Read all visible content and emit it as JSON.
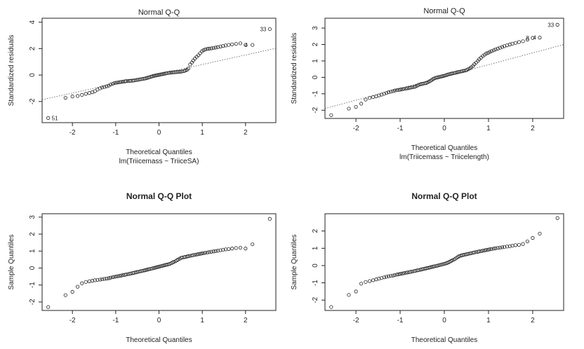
{
  "chart_data": [
    {
      "type": "scatter",
      "title": "Normal Q-Q",
      "subtitle": "lm(Triicemass ~ TriiceSA)",
      "xlabel": "Theoretical Quantiles",
      "ylabel": "Standardized residuals",
      "xlim": [
        -2.7,
        2.7
      ],
      "ylim": [
        -3.6,
        4.3
      ],
      "xticks": [
        -2,
        -1,
        0,
        1,
        2
      ],
      "yticks": [
        -2,
        0,
        2,
        4
      ],
      "reference_line": {
        "slope": 0.72,
        "intercept": 0.08,
        "style": "dotted"
      },
      "point_labels": [
        {
          "text": "33",
          "x": 2.56,
          "y": 3.48
        },
        {
          "text": "4",
          "x": 2.13,
          "y": 2.28
        },
        {
          "text": "51",
          "x": -2.56,
          "y": -3.25
        }
      ],
      "x": [
        -2.56,
        -2.16,
        -2.0,
        -1.88,
        -1.78,
        -1.69,
        -1.61,
        -1.54,
        -1.48,
        -1.42,
        -1.36,
        -1.31,
        -1.26,
        -1.21,
        -1.16,
        -1.12,
        -1.07,
        -1.03,
        -0.99,
        -0.95,
        -0.91,
        -0.87,
        -0.83,
        -0.79,
        -0.76,
        -0.72,
        -0.68,
        -0.65,
        -0.61,
        -0.58,
        -0.54,
        -0.51,
        -0.48,
        -0.44,
        -0.41,
        -0.38,
        -0.34,
        -0.31,
        -0.28,
        -0.25,
        -0.22,
        -0.18,
        -0.15,
        -0.12,
        -0.09,
        -0.06,
        -0.03,
        0.0,
        0.03,
        0.06,
        0.09,
        0.12,
        0.15,
        0.18,
        0.22,
        0.25,
        0.28,
        0.31,
        0.34,
        0.38,
        0.41,
        0.44,
        0.48,
        0.51,
        0.54,
        0.58,
        0.61,
        0.65,
        0.68,
        0.72,
        0.76,
        0.79,
        0.83,
        0.87,
        0.91,
        0.95,
        0.99,
        1.03,
        1.07,
        1.12,
        1.16,
        1.21,
        1.26,
        1.31,
        1.36,
        1.42,
        1.48,
        1.54,
        1.61,
        1.69,
        1.78,
        1.88,
        2.0,
        2.16,
        2.56
      ],
      "y": [
        -3.25,
        -1.72,
        -1.62,
        -1.58,
        -1.5,
        -1.42,
        -1.36,
        -1.3,
        -1.22,
        -1.1,
        -1.0,
        -0.94,
        -0.9,
        -0.85,
        -0.8,
        -0.72,
        -0.66,
        -0.6,
        -0.58,
        -0.56,
        -0.54,
        -0.52,
        -0.5,
        -0.48,
        -0.46,
        -0.45,
        -0.44,
        -0.43,
        -0.42,
        -0.41,
        -0.39,
        -0.37,
        -0.35,
        -0.33,
        -0.31,
        -0.29,
        -0.27,
        -0.25,
        -0.22,
        -0.19,
        -0.16,
        -0.12,
        -0.09,
        -0.06,
        -0.04,
        -0.02,
        0.0,
        0.02,
        0.04,
        0.06,
        0.08,
        0.1,
        0.12,
        0.14,
        0.16,
        0.18,
        0.19,
        0.2,
        0.21,
        0.22,
        0.23,
        0.24,
        0.25,
        0.26,
        0.28,
        0.3,
        0.35,
        0.4,
        0.5,
        0.8,
        0.95,
        1.1,
        1.25,
        1.38,
        1.5,
        1.65,
        1.8,
        1.88,
        1.94,
        1.98,
        2.0,
        2.02,
        2.05,
        2.08,
        2.12,
        2.16,
        2.2,
        2.24,
        2.28,
        2.32,
        2.36,
        2.4,
        2.28,
        2.28,
        3.48
      ]
    },
    {
      "type": "scatter",
      "title": "Normal Q-Q",
      "subtitle": "lm(Triicemass ~ Triicelength)",
      "xlabel": "Theoretical Quantiles",
      "ylabel": "Standardized residuals",
      "xlim": [
        -2.7,
        2.7
      ],
      "ylim": [
        -2.5,
        3.6
      ],
      "xticks": [
        -2,
        -1,
        0,
        1,
        2
      ],
      "yticks": [
        -2,
        -1,
        0,
        1,
        2,
        3
      ],
      "reference_line": {
        "slope": 0.72,
        "intercept": 0.05,
        "style": "dotted"
      },
      "point_labels": [
        {
          "text": "33",
          "x": 2.56,
          "y": 3.2
        },
        {
          "text": "8",
          "x": 2.0,
          "y": 2.4
        },
        {
          "text": "4",
          "x": 2.16,
          "y": 2.42
        }
      ],
      "x": [
        -2.56,
        -2.16,
        -2.0,
        -1.88,
        -1.78,
        -1.69,
        -1.61,
        -1.54,
        -1.48,
        -1.42,
        -1.36,
        -1.31,
        -1.26,
        -1.21,
        -1.16,
        -1.12,
        -1.07,
        -1.03,
        -0.99,
        -0.95,
        -0.91,
        -0.87,
        -0.83,
        -0.79,
        -0.76,
        -0.72,
        -0.68,
        -0.65,
        -0.61,
        -0.58,
        -0.54,
        -0.51,
        -0.48,
        -0.44,
        -0.41,
        -0.38,
        -0.34,
        -0.31,
        -0.28,
        -0.25,
        -0.22,
        -0.18,
        -0.15,
        -0.12,
        -0.09,
        -0.06,
        -0.03,
        0.0,
        0.03,
        0.06,
        0.09,
        0.12,
        0.15,
        0.18,
        0.22,
        0.25,
        0.28,
        0.31,
        0.34,
        0.38,
        0.41,
        0.44,
        0.48,
        0.51,
        0.54,
        0.58,
        0.61,
        0.65,
        0.68,
        0.72,
        0.76,
        0.79,
        0.83,
        0.87,
        0.91,
        0.95,
        0.99,
        1.03,
        1.07,
        1.12,
        1.16,
        1.21,
        1.26,
        1.31,
        1.36,
        1.42,
        1.48,
        1.54,
        1.61,
        1.69,
        1.78,
        1.88,
        2.0,
        2.16,
        2.56
      ],
      "y": [
        -2.3,
        -1.9,
        -1.8,
        -1.6,
        -1.35,
        -1.25,
        -1.2,
        -1.15,
        -1.1,
        -1.05,
        -1.0,
        -0.95,
        -0.9,
        -0.87,
        -0.84,
        -0.8,
        -0.78,
        -0.76,
        -0.74,
        -0.72,
        -0.7,
        -0.68,
        -0.66,
        -0.64,
        -0.62,
        -0.6,
        -0.58,
        -0.55,
        -0.5,
        -0.45,
        -0.42,
        -0.4,
        -0.38,
        -0.36,
        -0.34,
        -0.3,
        -0.25,
        -0.2,
        -0.15,
        -0.1,
        -0.05,
        -0.02,
        0.0,
        0.02,
        0.04,
        0.06,
        0.08,
        0.1,
        0.12,
        0.15,
        0.18,
        0.2,
        0.22,
        0.24,
        0.26,
        0.28,
        0.3,
        0.32,
        0.34,
        0.36,
        0.38,
        0.4,
        0.42,
        0.45,
        0.5,
        0.55,
        0.62,
        0.7,
        0.8,
        0.9,
        1.0,
        1.1,
        1.2,
        1.3,
        1.38,
        1.45,
        1.5,
        1.55,
        1.6,
        1.65,
        1.7,
        1.75,
        1.8,
        1.85,
        1.9,
        1.95,
        2.0,
        2.05,
        2.1,
        2.15,
        2.2,
        2.3,
        2.4,
        2.42,
        3.2
      ]
    },
    {
      "type": "scatter",
      "title": "Normal Q-Q Plot",
      "subtitle": "",
      "xlabel": "Theoretical Quantiles",
      "ylabel": "Sample Quantiles",
      "xlim": [
        -2.7,
        2.7
      ],
      "ylim": [
        -2.5,
        3.2
      ],
      "xticks": [
        -2,
        -1,
        0,
        1,
        2
      ],
      "yticks": [
        -2,
        -1,
        0,
        1,
        2,
        3
      ],
      "point_labels": [],
      "x": [
        -2.56,
        -2.16,
        -2.0,
        -1.88,
        -1.78,
        -1.69,
        -1.61,
        -1.54,
        -1.48,
        -1.42,
        -1.36,
        -1.31,
        -1.26,
        -1.21,
        -1.16,
        -1.12,
        -1.07,
        -1.03,
        -0.99,
        -0.95,
        -0.91,
        -0.87,
        -0.83,
        -0.79,
        -0.76,
        -0.72,
        -0.68,
        -0.65,
        -0.61,
        -0.58,
        -0.54,
        -0.51,
        -0.48,
        -0.44,
        -0.41,
        -0.38,
        -0.34,
        -0.31,
        -0.28,
        -0.25,
        -0.22,
        -0.18,
        -0.15,
        -0.12,
        -0.09,
        -0.06,
        -0.03,
        0.0,
        0.03,
        0.06,
        0.09,
        0.12,
        0.15,
        0.18,
        0.22,
        0.25,
        0.28,
        0.31,
        0.34,
        0.38,
        0.41,
        0.44,
        0.48,
        0.51,
        0.54,
        0.58,
        0.61,
        0.65,
        0.68,
        0.72,
        0.76,
        0.79,
        0.83,
        0.87,
        0.91,
        0.95,
        0.99,
        1.03,
        1.07,
        1.12,
        1.16,
        1.21,
        1.26,
        1.31,
        1.36,
        1.42,
        1.48,
        1.54,
        1.61,
        1.69,
        1.78,
        1.88,
        2.0,
        2.16,
        2.56
      ],
      "y": [
        -2.3,
        -1.6,
        -1.4,
        -1.1,
        -0.9,
        -0.82,
        -0.78,
        -0.75,
        -0.72,
        -0.7,
        -0.68,
        -0.66,
        -0.64,
        -0.62,
        -0.6,
        -0.57,
        -0.54,
        -0.52,
        -0.5,
        -0.48,
        -0.46,
        -0.44,
        -0.42,
        -0.4,
        -0.38,
        -0.36,
        -0.34,
        -0.32,
        -0.3,
        -0.28,
        -0.26,
        -0.24,
        -0.22,
        -0.2,
        -0.18,
        -0.16,
        -0.14,
        -0.12,
        -0.1,
        -0.08,
        -0.06,
        -0.04,
        -0.02,
        0.0,
        0.02,
        0.04,
        0.06,
        0.08,
        0.1,
        0.12,
        0.14,
        0.16,
        0.18,
        0.2,
        0.22,
        0.25,
        0.28,
        0.32,
        0.36,
        0.4,
        0.45,
        0.5,
        0.55,
        0.6,
        0.62,
        0.64,
        0.66,
        0.68,
        0.7,
        0.72,
        0.74,
        0.76,
        0.78,
        0.8,
        0.82,
        0.84,
        0.86,
        0.88,
        0.9,
        0.92,
        0.94,
        0.96,
        0.98,
        1.0,
        1.02,
        1.05,
        1.08,
        1.1,
        1.12,
        1.15,
        1.18,
        1.2,
        1.15,
        1.4,
        2.9
      ]
    },
    {
      "type": "scatter",
      "title": "Normal Q-Q Plot",
      "subtitle": "",
      "xlabel": "Theoretical Quantiles",
      "ylabel": "Sample Quantiles",
      "xlim": [
        -2.7,
        2.7
      ],
      "ylim": [
        -2.6,
        3.0
      ],
      "xticks": [
        -2,
        -1,
        0,
        1,
        2
      ],
      "yticks": [
        -2,
        -1,
        0,
        1,
        2
      ],
      "point_labels": [],
      "x": [
        -2.56,
        -2.16,
        -2.0,
        -1.88,
        -1.78,
        -1.69,
        -1.61,
        -1.54,
        -1.48,
        -1.42,
        -1.36,
        -1.31,
        -1.26,
        -1.21,
        -1.16,
        -1.12,
        -1.07,
        -1.03,
        -0.99,
        -0.95,
        -0.91,
        -0.87,
        -0.83,
        -0.79,
        -0.76,
        -0.72,
        -0.68,
        -0.65,
        -0.61,
        -0.58,
        -0.54,
        -0.51,
        -0.48,
        -0.44,
        -0.41,
        -0.38,
        -0.34,
        -0.31,
        -0.28,
        -0.25,
        -0.22,
        -0.18,
        -0.15,
        -0.12,
        -0.09,
        -0.06,
        -0.03,
        0.0,
        0.03,
        0.06,
        0.09,
        0.12,
        0.15,
        0.18,
        0.22,
        0.25,
        0.28,
        0.31,
        0.34,
        0.38,
        0.41,
        0.44,
        0.48,
        0.51,
        0.54,
        0.58,
        0.61,
        0.65,
        0.68,
        0.72,
        0.76,
        0.79,
        0.83,
        0.87,
        0.91,
        0.95,
        0.99,
        1.03,
        1.07,
        1.12,
        1.16,
        1.21,
        1.26,
        1.31,
        1.36,
        1.42,
        1.48,
        1.54,
        1.61,
        1.69,
        1.78,
        1.88,
        2.0,
        2.16,
        2.56
      ],
      "y": [
        -2.4,
        -1.7,
        -1.5,
        -1.05,
        -0.95,
        -0.9,
        -0.85,
        -0.8,
        -0.76,
        -0.72,
        -0.68,
        -0.65,
        -0.62,
        -0.6,
        -0.58,
        -0.55,
        -0.52,
        -0.5,
        -0.48,
        -0.46,
        -0.44,
        -0.42,
        -0.4,
        -0.38,
        -0.36,
        -0.34,
        -0.32,
        -0.3,
        -0.28,
        -0.26,
        -0.24,
        -0.22,
        -0.2,
        -0.18,
        -0.16,
        -0.14,
        -0.12,
        -0.1,
        -0.08,
        -0.06,
        -0.04,
        -0.02,
        0.0,
        0.02,
        0.04,
        0.06,
        0.08,
        0.1,
        0.12,
        0.15,
        0.18,
        0.22,
        0.26,
        0.3,
        0.35,
        0.4,
        0.45,
        0.5,
        0.55,
        0.58,
        0.6,
        0.62,
        0.64,
        0.66,
        0.68,
        0.7,
        0.72,
        0.74,
        0.76,
        0.78,
        0.8,
        0.82,
        0.84,
        0.86,
        0.88,
        0.9,
        0.92,
        0.94,
        0.96,
        0.98,
        1.0,
        1.02,
        1.04,
        1.06,
        1.08,
        1.1,
        1.12,
        1.15,
        1.18,
        1.2,
        1.25,
        1.4,
        1.6,
        1.85,
        2.75
      ]
    }
  ]
}
